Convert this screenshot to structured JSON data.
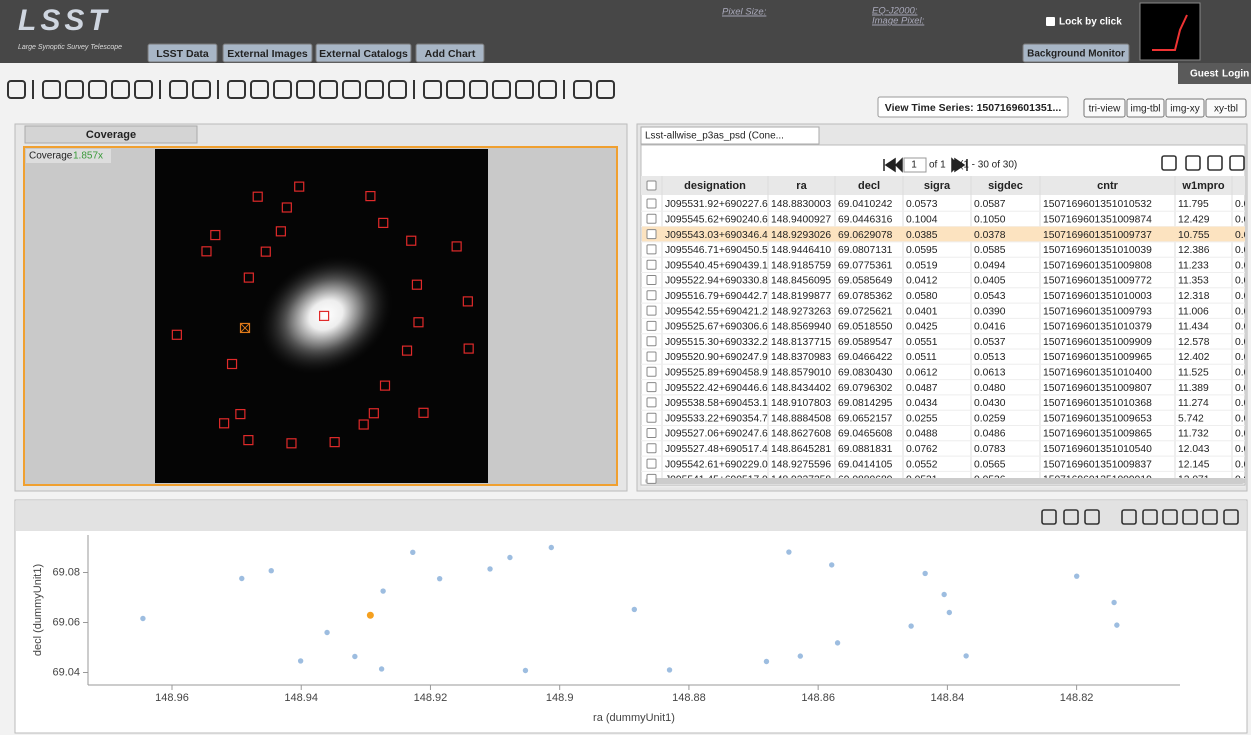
{
  "header": {
    "logo": "LSST",
    "logo_subtitle": "Large Synoptic Survey Telescope",
    "menu": [
      "LSST Data",
      "External Images",
      "External Catalogs",
      "Add Chart"
    ],
    "readouts": [
      "Pixel Size:",
      "EQ-J2000:",
      "Image Pixel:"
    ],
    "lock": "Lock by click",
    "background_monitor": "Background Monitor",
    "user": "Guest",
    "login": "Login"
  },
  "view": {
    "time_series": "View Time Series: 1507169601351...",
    "layouts": [
      "tri-view",
      "img-tbl",
      "img-xy",
      "xy-tbl"
    ]
  },
  "coverage": {
    "tab": "Coverage",
    "label": "Coverage",
    "zoom": "1.857x",
    "marker_color": "#e02a2a"
  },
  "table": {
    "tab": "Lsst-allwise_p3as_psd (Cone...",
    "page": "1",
    "page_of": "of 1",
    "range": "(1 - 30 of 30)",
    "columns": [
      "designation",
      "ra",
      "decl",
      "sigra",
      "sigdec",
      "cntr",
      "w1mpro",
      "w1s"
    ],
    "rows": [
      [
        "J095531.92+690227.6",
        "148.8830003",
        "69.0410242",
        "0.0573",
        "0.0587",
        "1507169601351010532",
        "11.795",
        "0.029"
      ],
      [
        "J095545.62+690240.6",
        "148.9400927",
        "69.0446316",
        "0.1004",
        "0.1050",
        "1507169601351009874",
        "12.429",
        "0.058"
      ],
      [
        "J095543.03+690346.4",
        "148.9293026",
        "69.0629078",
        "0.0385",
        "0.0378",
        "1507169601351009737",
        "10.755",
        "0.028"
      ],
      [
        "J095546.71+690450.5",
        "148.9446410",
        "69.0807131",
        "0.0595",
        "0.0585",
        "1507169601351010039",
        "12.386",
        "0.028"
      ],
      [
        "J095540.45+690439.1",
        "148.9185759",
        "69.0775361",
        "0.0519",
        "0.0494",
        "1507169601351009808",
        "11.233",
        "0.029"
      ],
      [
        "J095522.94+690330.8",
        "148.8456095",
        "69.0585649",
        "0.0412",
        "0.0405",
        "1507169601351009772",
        "11.353",
        "0.022"
      ],
      [
        "J095516.79+690442.7",
        "148.8199877",
        "69.0785362",
        "0.0580",
        "0.0543",
        "1507169601351010003",
        "12.318",
        "0.026"
      ],
      [
        "J095542.55+690421.2",
        "148.9273263",
        "69.0725621",
        "0.0401",
        "0.0390",
        "1507169601351009793",
        "11.006",
        "0.028"
      ],
      [
        "J095525.67+690306.6",
        "148.8569940",
        "69.0518550",
        "0.0425",
        "0.0416",
        "1507169601351010379",
        "11.434",
        "0.021"
      ],
      [
        "J095515.30+690332.2",
        "148.8137715",
        "69.0589547",
        "0.0551",
        "0.0537",
        "1507169601351009909",
        "12.578",
        "0.026"
      ],
      [
        "J095520.90+690247.9",
        "148.8370983",
        "69.0466422",
        "0.0511",
        "0.0513",
        "1507169601351009965",
        "12.402",
        "0.026"
      ],
      [
        "J095525.89+690458.9",
        "148.8579010",
        "69.0830430",
        "0.0612",
        "0.0613",
        "1507169601351010400",
        "11.525",
        "0.032"
      ],
      [
        "J095522.42+690446.6",
        "148.8434402",
        "69.0796302",
        "0.0487",
        "0.0480",
        "1507169601351009807",
        "11.389",
        "0.028"
      ],
      [
        "J095538.58+690453.1",
        "148.9107803",
        "69.0814295",
        "0.0434",
        "0.0430",
        "1507169601351010368",
        "11.274",
        "0.025"
      ],
      [
        "J095533.22+690354.7",
        "148.8884508",
        "69.0652157",
        "0.0255",
        "0.0259",
        "1507169601351009653",
        "5.742",
        "0.038"
      ],
      [
        "J095527.06+690247.6",
        "148.8627608",
        "69.0465608",
        "0.0488",
        "0.0486",
        "1507169601351009865",
        "11.732",
        "0.025"
      ],
      [
        "J095527.48+690517.4",
        "148.8645281",
        "69.0881831",
        "0.0762",
        "0.0783",
        "1507169601351010540",
        "12.043",
        "0.041"
      ],
      [
        "J095542.61+690229.0",
        "148.9275596",
        "69.0414105",
        "0.0552",
        "0.0565",
        "1507169601351009837",
        "12.145",
        "0.030"
      ],
      [
        "J095541.45+690517.0",
        "148.9227358",
        "69.0880680",
        "0.0531",
        "0.0536",
        "1507169601351009919",
        "12.071",
        "0.028"
      ]
    ],
    "highlighted_row": 2
  },
  "chart_data": {
    "type": "scatter",
    "xlabel": "ra (dummyUnit1)",
    "ylabel": "decl (dummyUnit1)",
    "x": [
      148.8830003,
      148.9400927,
      148.9293026,
      148.944641,
      148.9185759,
      148.8456095,
      148.8199877,
      148.9273263,
      148.856994,
      148.8137715,
      148.8370983,
      148.857901,
      148.8434402,
      148.9107803,
      148.8884508,
      148.8627608,
      148.8645281,
      148.9275596,
      148.9227358,
      148.9645,
      148.9492,
      148.936,
      148.9317,
      148.9077,
      148.9053,
      148.9013,
      148.868,
      148.8405,
      148.8397,
      148.8142
    ],
    "y": [
      69.0410242,
      69.0446316,
      69.0629078,
      69.0807131,
      69.0775361,
      69.0585649,
      69.0785362,
      69.0725621,
      69.051855,
      69.0589547,
      69.0466422,
      69.083043,
      69.0796302,
      69.0814295,
      69.0652157,
      69.0465608,
      69.0881831,
      69.0414105,
      69.088068,
      69.0616,
      69.0776,
      69.056,
      69.0464,
      69.086,
      69.0408,
      69.09,
      69.0444,
      69.0712,
      69.064,
      69.068
    ],
    "color": "#9dbde0",
    "highlight_color": "#f5a01f",
    "highlight_index": 2,
    "xlim": [
      148.973,
      148.804
    ],
    "ylim": [
      69.035,
      69.095
    ],
    "xticks": [
      148.96,
      148.94,
      148.92,
      148.9,
      148.88,
      148.86,
      148.84,
      148.82
    ],
    "yticks": [
      69.04,
      69.06,
      69.08
    ]
  }
}
